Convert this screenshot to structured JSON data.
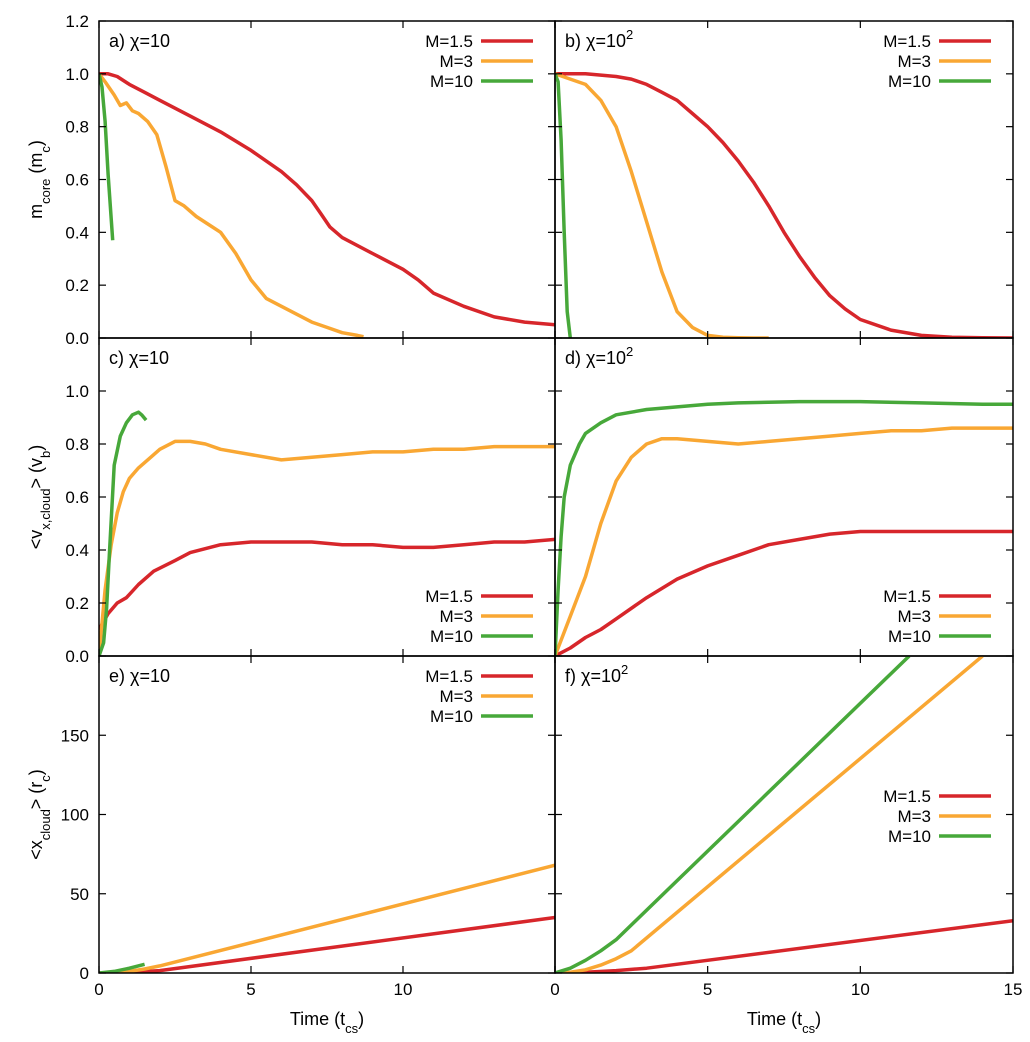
{
  "colors": {
    "M=1.5": "#d7262b",
    "M=3": "#f9a733",
    "M=10": "#47a83a"
  },
  "chart_data": [
    {
      "id": "a",
      "type": "line",
      "title_prefix": "a) χ=10",
      "title_sup": "",
      "ylabel": "m_core (m_c)",
      "xlabel": "",
      "xlim": [
        0,
        15
      ],
      "ylim": [
        0,
        1.2
      ],
      "yticks": [
        "0.0",
        "0.2",
        "0.4",
        "0.6",
        "0.8",
        "1.0",
        "1.2"
      ],
      "ytick_values": [
        0,
        0.2,
        0.4,
        0.6,
        0.8,
        1.0,
        1.2
      ],
      "xticks": [],
      "xtick_values": [],
      "legend": "top-right",
      "series": [
        {
          "name": "M=1.5",
          "x": [
            0,
            0.3,
            0.6,
            1,
            1.5,
            2,
            3,
            4,
            5,
            6,
            6.5,
            7,
            7.3,
            7.6,
            8,
            9,
            10,
            10.5,
            11,
            12,
            13,
            14,
            15
          ],
          "y": [
            1,
            1,
            0.99,
            0.96,
            0.93,
            0.9,
            0.84,
            0.78,
            0.71,
            0.63,
            0.58,
            0.52,
            0.47,
            0.42,
            0.38,
            0.32,
            0.26,
            0.22,
            0.17,
            0.12,
            0.08,
            0.06,
            0.05
          ]
        },
        {
          "name": "M=3",
          "x": [
            0,
            0.2,
            0.5,
            0.7,
            0.9,
            1.1,
            1.3,
            1.6,
            1.9,
            2.2,
            2.5,
            2.8,
            3.2,
            3.6,
            4,
            4.5,
            5,
            5.5,
            6,
            6.5,
            7,
            7.5,
            8,
            8.5,
            8.7
          ],
          "y": [
            1,
            0.97,
            0.92,
            0.88,
            0.89,
            0.86,
            0.85,
            0.82,
            0.77,
            0.65,
            0.52,
            0.5,
            0.46,
            0.43,
            0.4,
            0.32,
            0.22,
            0.15,
            0.12,
            0.09,
            0.06,
            0.04,
            0.02,
            0.01,
            0.005
          ]
        },
        {
          "name": "M=10",
          "x": [
            0,
            0.1,
            0.2,
            0.3,
            0.45
          ],
          "y": [
            1,
            0.95,
            0.82,
            0.62,
            0.37
          ]
        }
      ]
    },
    {
      "id": "b",
      "type": "line",
      "title_prefix": "b) χ=10",
      "title_sup": "2",
      "ylabel": "",
      "xlabel": "",
      "xlim": [
        0,
        15
      ],
      "ylim": [
        0,
        1.2
      ],
      "yticks": [],
      "ytick_values": [
        0,
        0.2,
        0.4,
        0.6,
        0.8,
        1.0,
        1.2
      ],
      "xticks": [],
      "xtick_values": [],
      "legend": "top-right",
      "series": [
        {
          "name": "M=1.5",
          "x": [
            0,
            0.5,
            1,
            2,
            2.5,
            3,
            3.5,
            4,
            4.5,
            5,
            5.5,
            6,
            6.5,
            7,
            7.5,
            8,
            8.5,
            9,
            9.5,
            10,
            11,
            12,
            13,
            14,
            15
          ],
          "y": [
            1,
            1,
            1,
            0.99,
            0.98,
            0.96,
            0.93,
            0.9,
            0.85,
            0.8,
            0.74,
            0.67,
            0.59,
            0.5,
            0.4,
            0.31,
            0.23,
            0.16,
            0.11,
            0.07,
            0.03,
            0.01,
            0.003,
            0.001,
            0
          ]
        },
        {
          "name": "M=3",
          "x": [
            0,
            0.5,
            1,
            1.5,
            2,
            2.5,
            3,
            3.5,
            4,
            4.5,
            5,
            5.5,
            6,
            6.5,
            7
          ],
          "y": [
            1,
            0.98,
            0.96,
            0.9,
            0.8,
            0.63,
            0.44,
            0.25,
            0.1,
            0.04,
            0.01,
            0.003,
            0.001,
            0,
            0
          ]
        },
        {
          "name": "M=10",
          "x": [
            0,
            0.1,
            0.2,
            0.3,
            0.4,
            0.5
          ],
          "y": [
            1,
            0.97,
            0.75,
            0.4,
            0.1,
            0
          ]
        }
      ]
    },
    {
      "id": "c",
      "type": "line",
      "title_prefix": "c) χ=10",
      "title_sup": "",
      "ylabel": "<v_x,cloud> (v_b)",
      "xlabel": "",
      "xlim": [
        0,
        15
      ],
      "ylim": [
        0,
        1.2
      ],
      "yticks": [
        "0.0",
        "0.2",
        "0.4",
        "0.6",
        "0.8",
        "1.0"
      ],
      "ytick_values": [
        0,
        0.2,
        0.4,
        0.6,
        0.8,
        1.0
      ],
      "xticks": [],
      "xtick_values": [],
      "legend": "bottom-right",
      "series": [
        {
          "name": "M=1.5",
          "x": [
            0,
            0.3,
            0.6,
            0.9,
            1.3,
            1.8,
            2.5,
            3,
            4,
            5,
            6,
            7,
            8,
            9,
            10,
            11,
            12,
            13,
            14,
            15
          ],
          "y": [
            0.1,
            0.16,
            0.2,
            0.22,
            0.27,
            0.32,
            0.36,
            0.39,
            0.42,
            0.43,
            0.43,
            0.43,
            0.42,
            0.42,
            0.41,
            0.41,
            0.42,
            0.43,
            0.43,
            0.44
          ]
        },
        {
          "name": "M=3",
          "x": [
            0,
            0.2,
            0.4,
            0.6,
            0.8,
            1,
            1.3,
            1.7,
            2,
            2.5,
            3,
            3.5,
            4,
            5,
            6,
            7,
            8,
            9,
            10,
            11,
            12,
            13,
            14,
            15
          ],
          "y": [
            0,
            0.25,
            0.42,
            0.54,
            0.62,
            0.67,
            0.71,
            0.75,
            0.78,
            0.81,
            0.81,
            0.8,
            0.78,
            0.76,
            0.74,
            0.75,
            0.76,
            0.77,
            0.77,
            0.78,
            0.78,
            0.79,
            0.79,
            0.79
          ]
        },
        {
          "name": "M=10",
          "x": [
            0,
            0.15,
            0.25,
            0.35,
            0.5,
            0.7,
            0.9,
            1.1,
            1.3,
            1.4,
            1.55
          ],
          "y": [
            0,
            0.05,
            0.18,
            0.4,
            0.72,
            0.83,
            0.88,
            0.91,
            0.92,
            0.91,
            0.89
          ]
        }
      ]
    },
    {
      "id": "d",
      "type": "line",
      "title_prefix": "d) χ=10",
      "title_sup": "2",
      "ylabel": "",
      "xlabel": "",
      "xlim": [
        0,
        15
      ],
      "ylim": [
        0,
        1.2
      ],
      "yticks": [],
      "ytick_values": [
        0,
        0.2,
        0.4,
        0.6,
        0.8,
        1.0
      ],
      "xticks": [],
      "xtick_values": [],
      "legend": "bottom-right",
      "series": [
        {
          "name": "M=1.5",
          "x": [
            0,
            0.5,
            1,
            1.5,
            2,
            3,
            4,
            5,
            6,
            7,
            8,
            9,
            10,
            11,
            12,
            13,
            14,
            15
          ],
          "y": [
            0,
            0.03,
            0.07,
            0.1,
            0.14,
            0.22,
            0.29,
            0.34,
            0.38,
            0.42,
            0.44,
            0.46,
            0.47,
            0.47,
            0.47,
            0.47,
            0.47,
            0.47
          ]
        },
        {
          "name": "M=3",
          "x": [
            0,
            0.5,
            1,
            1.5,
            2,
            2.5,
            3,
            3.5,
            4,
            5,
            6,
            7,
            8,
            9,
            10,
            11,
            12,
            13,
            14,
            15
          ],
          "y": [
            0,
            0.15,
            0.3,
            0.5,
            0.66,
            0.75,
            0.8,
            0.82,
            0.82,
            0.81,
            0.8,
            0.81,
            0.82,
            0.83,
            0.84,
            0.85,
            0.85,
            0.86,
            0.86,
            0.86
          ]
        },
        {
          "name": "M=10",
          "x": [
            0,
            0.1,
            0.2,
            0.3,
            0.5,
            0.8,
            1,
            1.5,
            2,
            3,
            4,
            5,
            6,
            8,
            10,
            12,
            14,
            15
          ],
          "y": [
            0,
            0.25,
            0.45,
            0.6,
            0.72,
            0.8,
            0.84,
            0.88,
            0.91,
            0.93,
            0.94,
            0.95,
            0.955,
            0.96,
            0.96,
            0.955,
            0.95,
            0.95
          ]
        }
      ]
    },
    {
      "id": "e",
      "type": "line",
      "title_prefix": "e) χ=10",
      "title_sup": "",
      "ylabel": "<x_cloud> (r_c)",
      "xlabel": "Time (t_cs)",
      "xlim": [
        0,
        15
      ],
      "ylim": [
        0,
        200
      ],
      "yticks": [
        "0",
        "50",
        "100",
        "150"
      ],
      "ytick_values": [
        0,
        50,
        100,
        150
      ],
      "xticks": [
        "0",
        "5",
        "10"
      ],
      "xtick_values": [
        0,
        5,
        10
      ],
      "legend": "top-right",
      "series": [
        {
          "name": "M=1.5",
          "x": [
            0,
            0.5,
            1,
            2,
            15
          ],
          "y": [
            0,
            0.1,
            0.5,
            1.5,
            35
          ]
        },
        {
          "name": "M=3",
          "x": [
            0,
            0.5,
            1,
            1.5,
            2,
            15
          ],
          "y": [
            0,
            0.2,
            1,
            2.5,
            4.5,
            68
          ]
        },
        {
          "name": "M=10",
          "x": [
            0,
            0.5,
            1,
            1.5
          ],
          "y": [
            0,
            1,
            3,
            5.5
          ]
        }
      ]
    },
    {
      "id": "f",
      "type": "line",
      "title_prefix": "f) χ=10",
      "title_sup": "2",
      "ylabel": "",
      "xlabel": "Time (t_cs)",
      "xlim": [
        0,
        15
      ],
      "ylim": [
        0,
        200
      ],
      "yticks": [],
      "ytick_values": [
        0,
        50,
        100,
        150
      ],
      "xticks": [
        "0",
        "5",
        "10",
        "15"
      ],
      "xtick_values": [
        0,
        5,
        10,
        15
      ],
      "legend": "middle-right",
      "series": [
        {
          "name": "M=1.5",
          "x": [
            0,
            1,
            2,
            3,
            15
          ],
          "y": [
            0,
            0.5,
            1.5,
            3,
            33
          ]
        },
        {
          "name": "M=3",
          "x": [
            0,
            0.5,
            1,
            1.5,
            2,
            2.5,
            14
          ],
          "y": [
            0,
            0.5,
            2,
            5,
            9,
            14,
            200
          ]
        },
        {
          "name": "M=10",
          "x": [
            0,
            0.5,
            1,
            1.5,
            2,
            11.6
          ],
          "y": [
            0,
            3,
            8,
            14,
            21,
            200
          ]
        }
      ]
    }
  ]
}
